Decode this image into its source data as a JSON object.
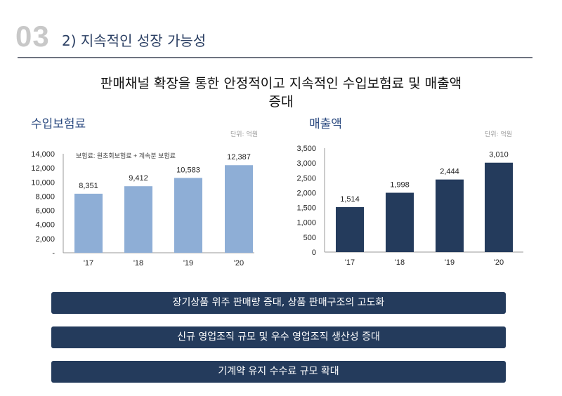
{
  "header": {
    "section_number": "03",
    "section_title": "2) 지속적인 성장 가능성"
  },
  "headline": {
    "line1": "판매채널 확장을 통한 안정적이고 지속적인 수입보험료 및 매출액",
    "line2": "증대"
  },
  "chart_data": [
    {
      "type": "bar",
      "title": "수입보험료",
      "unit": "단위: 억원",
      "annotation": "보험료: 원초회보험료 + 계속분 보험료",
      "categories": [
        "'17",
        "'18",
        "'19",
        "'20"
      ],
      "values": [
        8351,
        9412,
        10583,
        12387
      ],
      "data_labels": [
        "8,351",
        "9,412",
        "10,583",
        "12,387"
      ],
      "ylim": [
        0,
        14000
      ],
      "yticks": [
        0,
        2000,
        4000,
        6000,
        8000,
        10000,
        12000,
        14000
      ],
      "ytick_labels": [
        "-",
        "2,000",
        "4,000",
        "6,000",
        "8,000",
        "10,000",
        "12,000",
        "14,000"
      ],
      "grid": false,
      "color": "#8eaed6"
    },
    {
      "type": "bar",
      "title": "매출액",
      "unit": "단위: 억원",
      "categories": [
        "'17",
        "'18",
        "'19",
        "'20"
      ],
      "values": [
        1514,
        1998,
        2444,
        3010
      ],
      "data_labels": [
        "1,514",
        "1,998",
        "2,444",
        "3,010"
      ],
      "ylim": [
        0,
        3500
      ],
      "yticks": [
        0,
        500,
        1000,
        1500,
        2000,
        2500,
        3000,
        3500
      ],
      "ytick_labels": [
        "0",
        "500",
        "1,000",
        "1,500",
        "2,000",
        "2,500",
        "3,000",
        "3,500"
      ],
      "grid": false,
      "color": "#243b5c"
    }
  ],
  "banners": [
    "장기상품 위주 판매량 증대, 상품 판매구조의 고도화",
    "신규 영업조직 규모 및  우수 영업조직 생산성 증대",
    "기계약 유지 수수료 규모 확대"
  ]
}
